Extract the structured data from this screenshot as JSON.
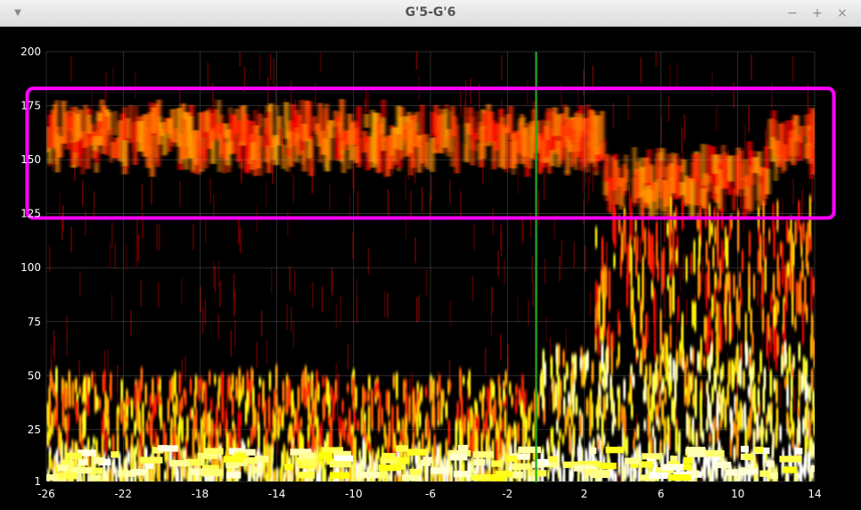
{
  "window": {
    "title": "G'5-G'6",
    "menu_icon": "triangle-down-icon",
    "minimize_label": "−",
    "maximize_label": "+",
    "close_label": "×"
  },
  "chart_data": {
    "type": "heatmap",
    "title": "",
    "xlabel": "",
    "ylabel": "",
    "colormap": "hot",
    "xlim": [
      -26,
      14
    ],
    "ylim": [
      1,
      200
    ],
    "x_ticks": [
      -26,
      -22,
      -18,
      -14,
      -10,
      -6,
      -2,
      2,
      6,
      10,
      14
    ],
    "y_ticks": [
      1,
      25,
      50,
      75,
      100,
      125,
      150,
      175,
      200
    ],
    "grid": true,
    "event_marker": {
      "x": -0.5,
      "color": "#22aa22"
    },
    "highlight_box": {
      "x_range": [
        -27,
        15
      ],
      "y_range": [
        123,
        183
      ],
      "color": "#ff00ff"
    },
    "bands": [
      {
        "x_range": [
          -26,
          3
        ],
        "y_center": 160,
        "label": ""
      },
      {
        "x_range": [
          3,
          11.5
        ],
        "y_center": 140,
        "label": ""
      },
      {
        "x_range": [
          11.5,
          14
        ],
        "y_center": 158,
        "label": ""
      }
    ],
    "colors": {
      "background": "#000000",
      "grid": "#bfbfbf",
      "marker": "#22aa22",
      "box": "#ff00ff"
    }
  }
}
